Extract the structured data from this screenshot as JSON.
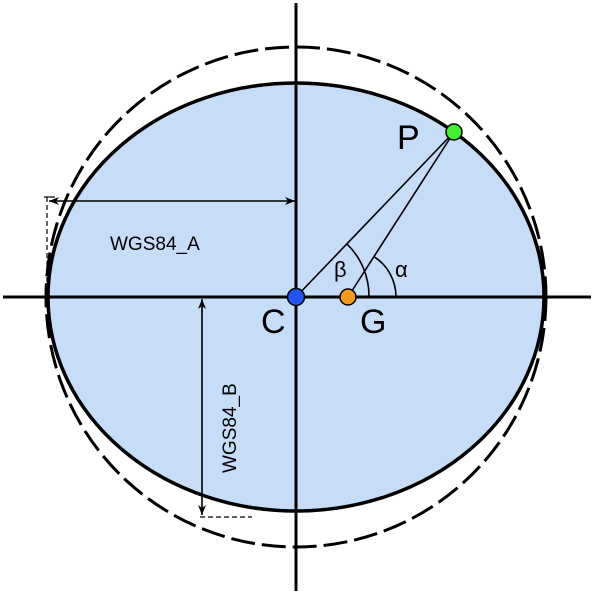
{
  "diagram": {
    "points": {
      "p": {
        "label": "P",
        "color": "#44ee33"
      },
      "c": {
        "label": "C",
        "color": "#2255ee"
      },
      "g": {
        "label": "G",
        "color": "#f59a1e"
      }
    },
    "angles": {
      "beta": "β",
      "alpha": "α"
    },
    "dimensions": {
      "semi_major": "WGS84_A",
      "semi_minor": "WGS84_B"
    },
    "colors": {
      "ellipse_fill": "#c6dcf7",
      "stroke": "#000000"
    }
  }
}
